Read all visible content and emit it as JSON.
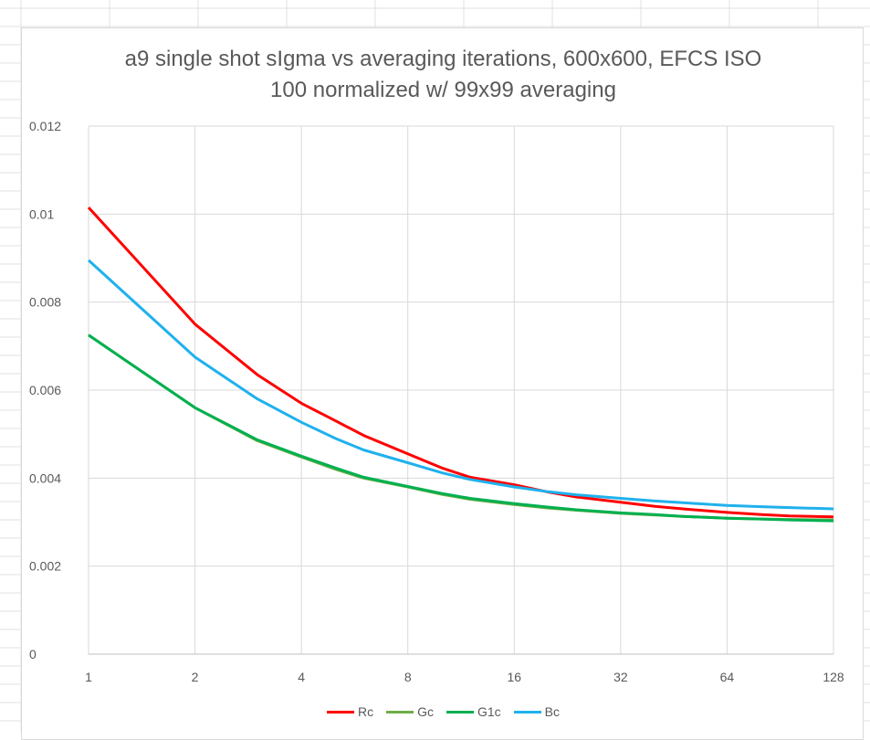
{
  "chart_data": {
    "type": "line",
    "title_lines": [
      "a9 single shot sIgma vs averaging iterations, 600x600, EFCS ISO",
      "100 normalized w/ 99x99 averaging"
    ],
    "xscale": "log2",
    "xlim": [
      1,
      128
    ],
    "ylim": [
      0,
      0.012
    ],
    "x_ticks": [
      "1",
      "2",
      "4",
      "8",
      "16",
      "32",
      "64",
      "128"
    ],
    "y_ticks": [
      "0.012",
      "0.01",
      "0.008",
      "0.006",
      "0.004",
      "0.002",
      "0"
    ],
    "grid": true,
    "legend_position": "bottom",
    "x": [
      1,
      2,
      3,
      4,
      5,
      6,
      8,
      10,
      12,
      16,
      20,
      24,
      32,
      40,
      48,
      64,
      80,
      96,
      128
    ],
    "series": [
      {
        "name": "Rc",
        "color": "#ff0000",
        "values": [
          0.01015,
          0.0075,
          0.00635,
          0.0057,
          0.0053,
          0.00497,
          0.00455,
          0.00423,
          0.00402,
          0.00385,
          0.00368,
          0.00357,
          0.00345,
          0.00336,
          0.0033,
          0.00322,
          0.00317,
          0.00314,
          0.00312
        ]
      },
      {
        "name": "Gc",
        "color": "#70ad47",
        "values": [
          0.00725,
          0.0056,
          0.00485,
          0.00448,
          0.0042,
          0.004,
          0.0038,
          0.00363,
          0.00352,
          0.0034,
          0.00332,
          0.00327,
          0.0032,
          0.00316,
          0.00313,
          0.00309,
          0.00307,
          0.00306,
          0.00305
        ]
      },
      {
        "name": "G1c",
        "color": "#00b050",
        "values": [
          0.00725,
          0.0056,
          0.00487,
          0.0045,
          0.00423,
          0.00402,
          0.00381,
          0.00365,
          0.00354,
          0.00342,
          0.00334,
          0.00328,
          0.00321,
          0.00317,
          0.00313,
          0.00309,
          0.00307,
          0.00305,
          0.00303
        ]
      },
      {
        "name": "Bc",
        "color": "#1fb1ed",
        "values": [
          0.00895,
          0.00675,
          0.0058,
          0.00527,
          0.0049,
          0.00464,
          0.00435,
          0.00412,
          0.00397,
          0.0038,
          0.00369,
          0.00362,
          0.00354,
          0.00348,
          0.00344,
          0.00338,
          0.00335,
          0.00333,
          0.0033
        ]
      }
    ]
  }
}
